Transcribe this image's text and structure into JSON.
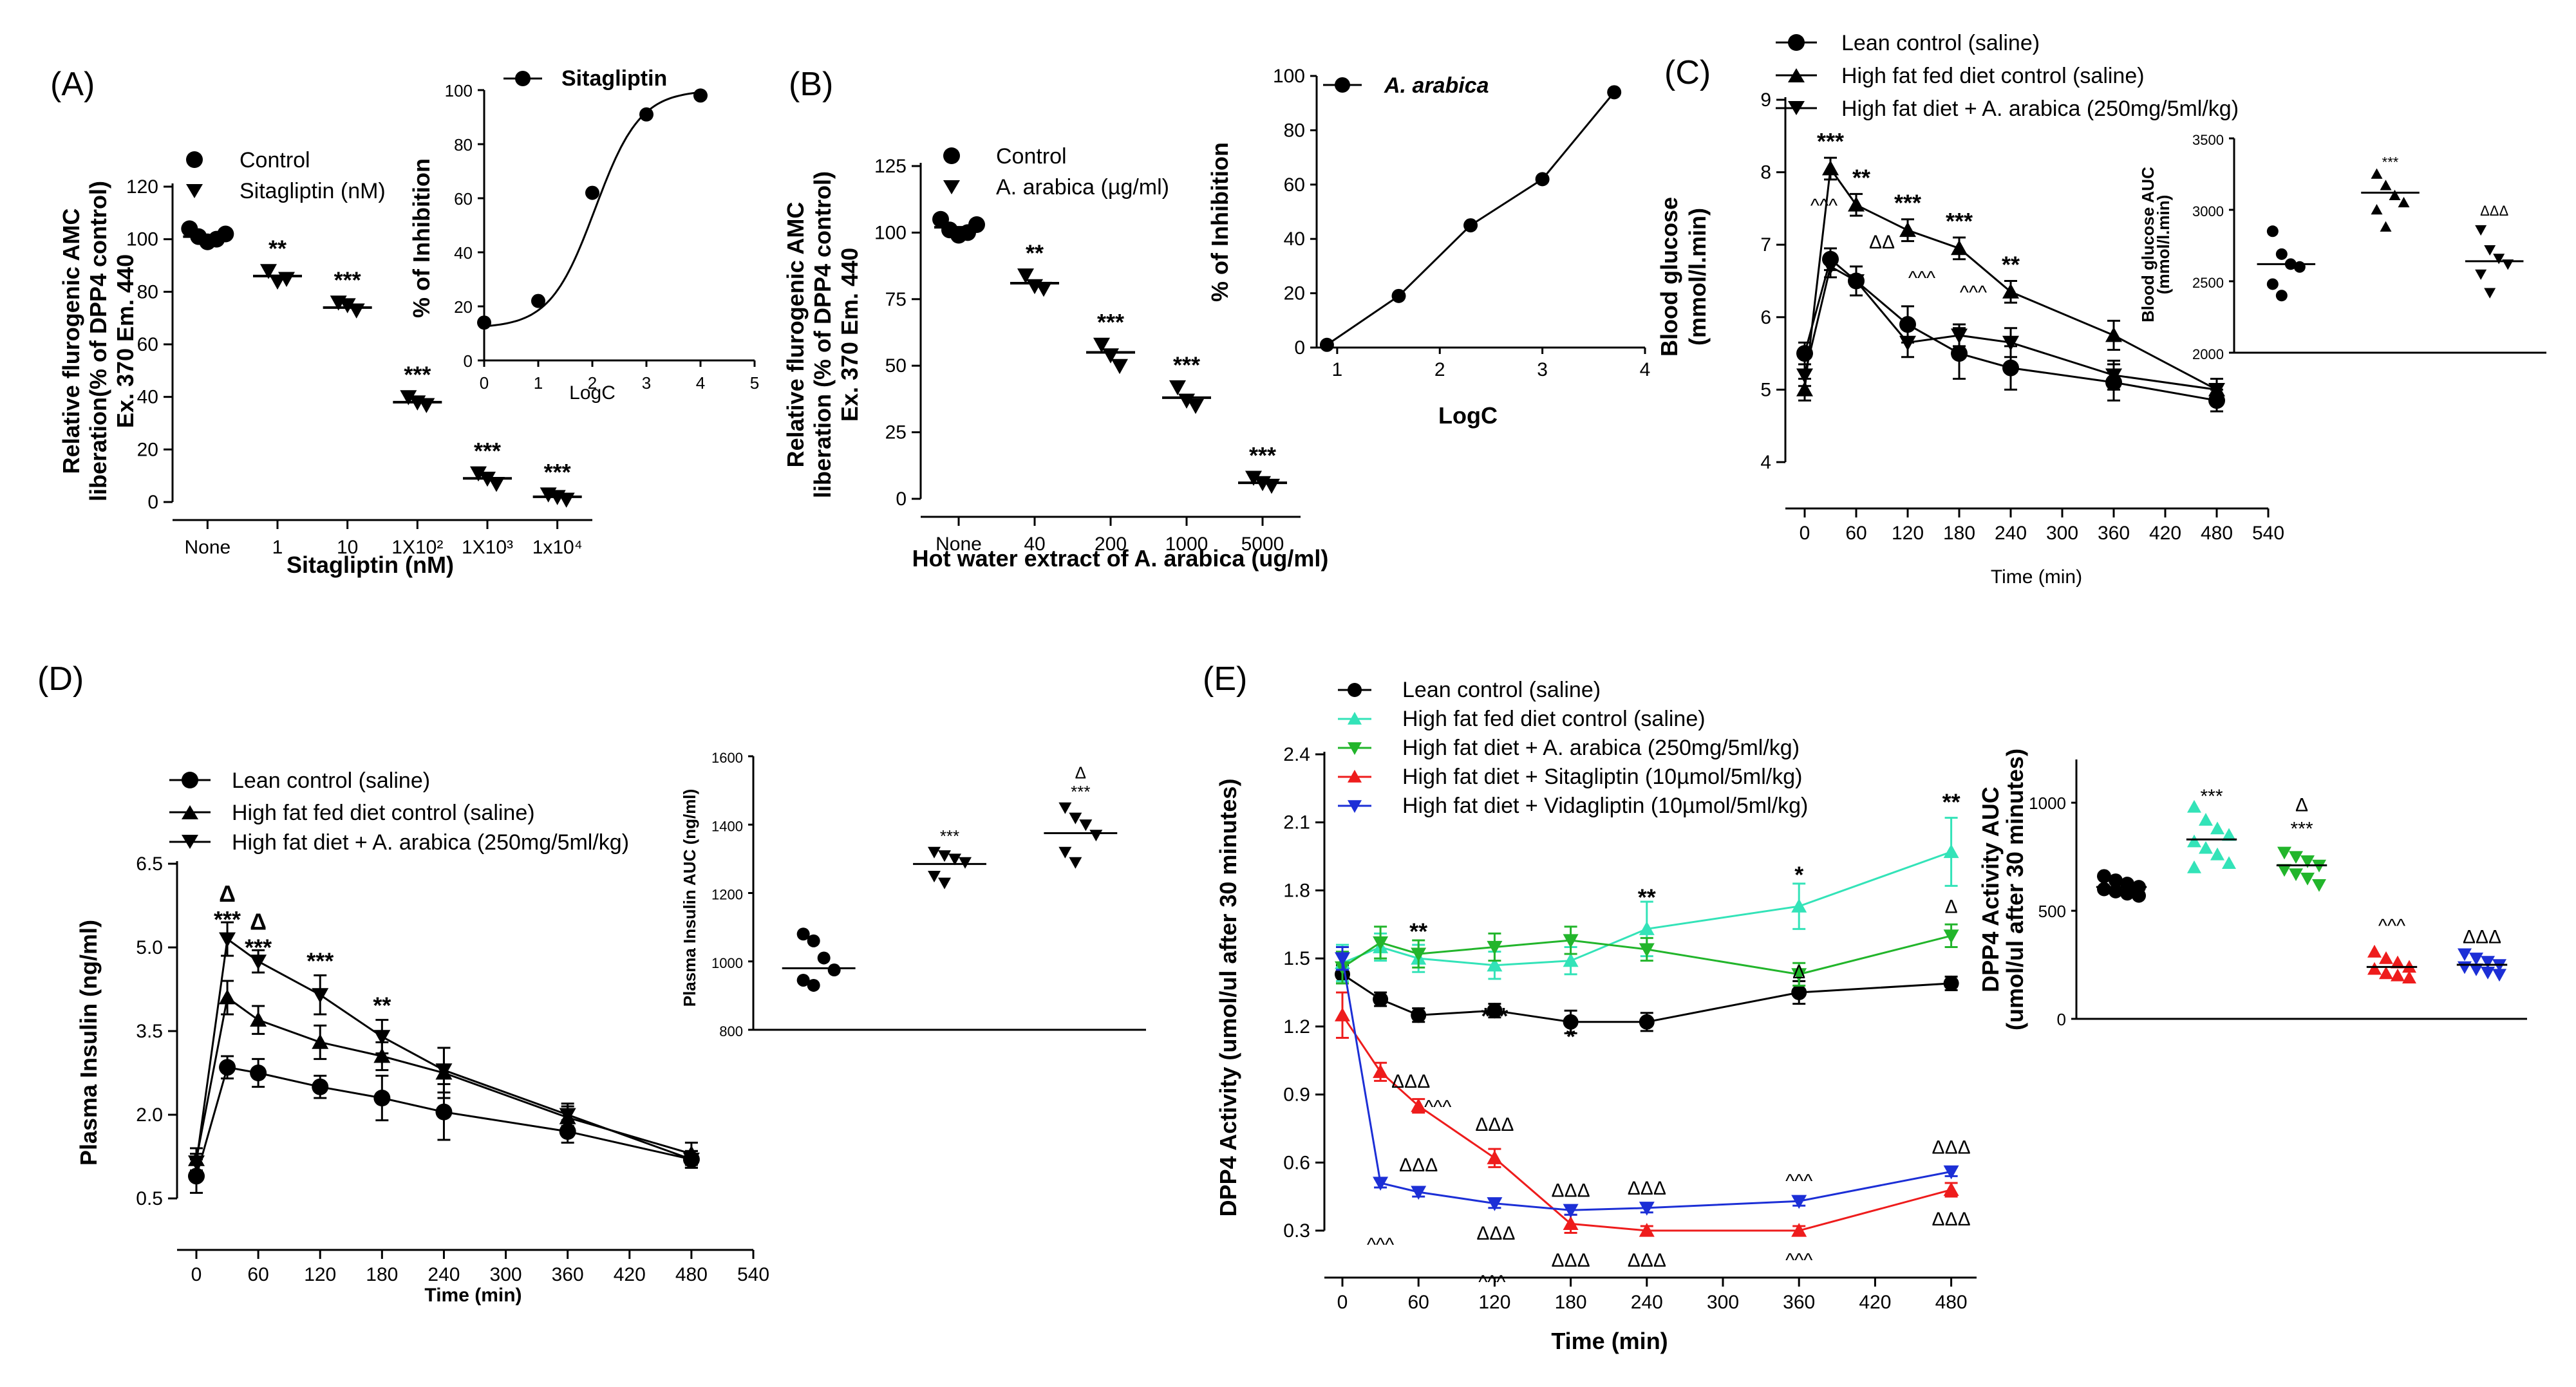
{
  "chart_data": [
    {
      "id": "A",
      "panel_label": "(A)",
      "type": "scatter",
      "ylabel_lines": [
        "Relative flurogenic AMC",
        "liberation(% of DPP4 control)",
        "Ex. 370 Em. 440"
      ],
      "xlabel": "Sitagliptin (nM)",
      "ylim": [
        0,
        120
      ],
      "yticks": [
        "0",
        "20",
        "40",
        "60",
        "80",
        "100",
        "120"
      ],
      "categories": [
        "None",
        "1",
        "10",
        "1X10²",
        "1X10³",
        "1x10⁴"
      ],
      "series": [
        {
          "name": "Control",
          "marker": "circle",
          "category_index": [
            0
          ],
          "means": [
            101
          ],
          "points": [
            [
              104,
              101,
              99,
              100,
              102
            ]
          ]
        },
        {
          "name": "Sitagliptin (nM)",
          "marker": "triangle-down",
          "category_index": [
            1,
            2,
            3,
            4,
            5
          ],
          "means": [
            86,
            74,
            38,
            9,
            2
          ],
          "points": [
            [
              88,
              84,
              85
            ],
            [
              76,
              75,
              73
            ],
            [
              40,
              38,
              37
            ],
            [
              11,
              9,
              7
            ],
            [
              3,
              2,
              1
            ]
          ]
        }
      ],
      "annotations": [
        "**",
        "***",
        "***",
        "***",
        "***"
      ],
      "inset": {
        "legend": "Sitagliptin",
        "xlabel": "LogC",
        "ylabel": "% of Inhibition",
        "xlim": [
          0,
          5
        ],
        "ylim": [
          0,
          100
        ],
        "xticks": [
          "0",
          "1",
          "2",
          "3",
          "4",
          "5"
        ],
        "yticks": [
          "0",
          "20",
          "40",
          "60",
          "80",
          "100"
        ],
        "x": [
          0,
          1,
          2,
          3,
          4
        ],
        "y": [
          14,
          22,
          62,
          91,
          98
        ]
      }
    },
    {
      "id": "B",
      "panel_label": "(B)",
      "type": "scatter",
      "ylabel_lines": [
        "Relative flurogenic AMC",
        "liberation (% of DPP4 control)",
        "Ex. 370 Em. 440"
      ],
      "xlabel": "Hot water extract of A. arabica (ug/ml)",
      "ylim": [
        0,
        125
      ],
      "yticks": [
        "0",
        "25",
        "50",
        "75",
        "100",
        "125"
      ],
      "categories": [
        "None",
        "40",
        "200",
        "1000",
        "5000"
      ],
      "series": [
        {
          "name": "Control",
          "marker": "circle",
          "category_index": [
            0
          ],
          "means": [
            102
          ],
          "points": [
            [
              105,
              101,
              99,
              100,
              103
            ]
          ]
        },
        {
          "name": "A. arabica (µg/ml)",
          "marker": "triangle-down",
          "category_index": [
            1,
            2,
            3,
            4
          ],
          "means": [
            81,
            55,
            38,
            6
          ],
          "points": [
            [
              84,
              80,
              79
            ],
            [
              58,
              54,
              50
            ],
            [
              42,
              37,
              35
            ],
            [
              8,
              6,
              5
            ]
          ]
        }
      ],
      "annotations": [
        "**",
        "***",
        "***",
        "***"
      ],
      "inset": {
        "legend": "A. arabica",
        "xlabel": "LogC",
        "ylabel": "% of Inhibition",
        "xlim": [
          0.8,
          4
        ],
        "ylim": [
          0,
          100
        ],
        "xticks": [
          "1",
          "2",
          "3",
          "4"
        ],
        "yticks": [
          "0",
          "20",
          "40",
          "60",
          "80",
          "100"
        ],
        "x": [
          0.9,
          1.6,
          2.3,
          3.0,
          3.7
        ],
        "y": [
          1,
          19,
          45,
          62,
          94
        ]
      }
    },
    {
      "id": "C",
      "panel_label": "(C)",
      "type": "line",
      "ylabel_lines": [
        "Blood glucose",
        "(mmol/l.min)"
      ],
      "xlabel": "Time (min)",
      "xlim": [
        0,
        540
      ],
      "ylim": [
        4,
        9
      ],
      "xticks": [
        "0",
        "60",
        "120",
        "180",
        "240",
        "300",
        "360",
        "420",
        "480",
        "540"
      ],
      "yticks": [
        "4",
        "5",
        "6",
        "7",
        "8",
        "9"
      ],
      "x": [
        0,
        30,
        60,
        120,
        180,
        240,
        360,
        480
      ],
      "series": [
        {
          "name": "Lean control (saline)",
          "marker": "circle",
          "values": [
            5.5,
            6.8,
            6.5,
            5.9,
            5.5,
            5.3,
            5.1,
            4.85
          ],
          "err": [
            0.15,
            0.15,
            0.2,
            0.25,
            0.35,
            0.3,
            0.25,
            0.15
          ]
        },
        {
          "name": "High fat fed diet control (saline)",
          "marker": "triangle-up",
          "values": [
            5.0,
            8.05,
            7.55,
            7.2,
            6.95,
            6.35,
            5.75,
            5.0
          ],
          "err": [
            0.15,
            0.15,
            0.15,
            0.15,
            0.15,
            0.15,
            0.2,
            0.15
          ]
        },
        {
          "name": "High fat diet + A. arabica (250mg/5ml/kg)",
          "marker": "triangle-down",
          "values": [
            5.2,
            6.7,
            6.5,
            5.65,
            5.75,
            5.65,
            5.2,
            5.0
          ],
          "err": [
            0.15,
            0.15,
            0.2,
            0.2,
            0.15,
            0.2,
            0.2,
            0.15
          ]
        }
      ],
      "annotations": [
        "***",
        "**",
        "***",
        "***",
        "**",
        "^^^",
        "ΔΔ",
        "^^^",
        "^^^"
      ],
      "inset": {
        "ylabel_lines": [
          "Blood glucose AUC",
          "(mmol/l.min)"
        ],
        "ylim": [
          2000,
          3500
        ],
        "yticks": [
          "2000",
          "2500",
          "3000",
          "3500"
        ],
        "groups": [
          {
            "mean": 2620,
            "points": [
              2850,
              2690,
              2620,
              2600,
              2480,
              2400
            ]
          },
          {
            "mean": 3120,
            "points": [
              3250,
              3170,
              3100,
              3050,
              3000,
              2880
            ]
          },
          {
            "mean": 2640,
            "points": [
              2860,
              2720,
              2660,
              2620,
              2550,
              2420
            ]
          }
        ],
        "annotations": [
          "***",
          "ΔΔΔ"
        ]
      }
    },
    {
      "id": "D",
      "panel_label": "(D)",
      "type": "line",
      "ylabel_lines": [
        "Plasma Insulin (ng/ml)"
      ],
      "xlabel": "Time (min)",
      "xlim": [
        0,
        540
      ],
      "ylim": [
        0.5,
        6.5
      ],
      "xticks": [
        "0",
        "60",
        "120",
        "180",
        "240",
        "300",
        "360",
        "420",
        "480",
        "540"
      ],
      "yticks": [
        "0.5",
        "2.0",
        "3.5",
        "5.0",
        "6.5"
      ],
      "x": [
        0,
        30,
        60,
        120,
        180,
        240,
        360,
        480
      ],
      "series": [
        {
          "name": "Lean control (saline)",
          "marker": "circle",
          "values": [
            0.9,
            2.85,
            2.75,
            2.5,
            2.3,
            2.05,
            1.7,
            1.2
          ],
          "err": [
            0.3,
            0.2,
            0.25,
            0.2,
            0.4,
            0.5,
            0.2,
            0.15
          ]
        },
        {
          "name": "High fat fed diet control (saline)",
          "marker": "triangle-up",
          "values": [
            1.2,
            4.1,
            3.7,
            3.3,
            3.05,
            2.75,
            1.95,
            1.3
          ],
          "err": [
            0.2,
            0.3,
            0.25,
            0.3,
            0.25,
            0.45,
            0.2,
            0.2
          ]
        },
        {
          "name": "High fat diet + A. arabica (250mg/5ml/kg)",
          "marker": "triangle-down",
          "values": [
            1.15,
            5.15,
            4.75,
            4.15,
            3.4,
            2.8,
            2.0,
            1.2
          ],
          "err": [
            0.15,
            0.3,
            0.2,
            0.35,
            0.3,
            0.4,
            0.2,
            0.15
          ]
        }
      ],
      "annotations": [
        "Δ",
        "***",
        "Δ",
        "***",
        "***",
        "**"
      ],
      "inset": {
        "ylabel_lines": [
          "Plasma Insulin AUC (ng/ml)"
        ],
        "ylim": [
          800,
          1600
        ],
        "yticks": [
          "800",
          "1000",
          "1200",
          "1400",
          "1600"
        ],
        "groups": [
          {
            "mean": 980,
            "points": [
              1080,
              1060,
              1010,
              975,
              945,
              930
            ]
          },
          {
            "mean": 1285,
            "points": [
              1320,
              1310,
              1300,
              1290,
              1250,
              1230
            ]
          },
          {
            "mean": 1375,
            "points": [
              1450,
              1420,
              1400,
              1370,
              1320,
              1290
            ]
          }
        ],
        "annotations": [
          "***",
          "Δ",
          "***"
        ]
      }
    },
    {
      "id": "E",
      "panel_label": "(E)",
      "type": "line",
      "ylabel_lines": [
        "DPP4 Activity (umol/ul after 30 minutes)"
      ],
      "xlabel": "Time (min)",
      "xlim": [
        0,
        500
      ],
      "ylim": [
        0.3,
        2.4
      ],
      "xticks": [
        "0",
        "60",
        "120",
        "180",
        "240",
        "300",
        "360",
        "420",
        "480"
      ],
      "yticks": [
        "0.3",
        "0.6",
        "0.9",
        "1.2",
        "1.5",
        "1.8",
        "2.1",
        "2.4"
      ],
      "x": [
        0,
        30,
        60,
        120,
        180,
        240,
        360,
        480
      ],
      "series": [
        {
          "name": "Lean control (saline)",
          "marker": "circle",
          "color": "#000000",
          "values": [
            1.43,
            1.32,
            1.25,
            1.27,
            1.22,
            1.22,
            1.35,
            1.39
          ],
          "err": [
            0.04,
            0.03,
            0.03,
            0.03,
            0.05,
            0.04,
            0.05,
            0.03
          ]
        },
        {
          "name": "High fat fed diet control (saline)",
          "marker": "triangle-up",
          "color": "#33e3b8",
          "values": [
            1.48,
            1.55,
            1.5,
            1.47,
            1.49,
            1.63,
            1.73,
            1.97
          ],
          "err": [
            0.08,
            0.06,
            0.06,
            0.06,
            0.06,
            0.12,
            0.1,
            0.15
          ]
        },
        {
          "name": "High fat diet + A. arabica (250mg/5ml/kg)",
          "marker": "triangle-down",
          "color": "#22b52b",
          "values": [
            1.46,
            1.57,
            1.52,
            1.55,
            1.58,
            1.54,
            1.43,
            1.6
          ],
          "err": [
            0.07,
            0.07,
            0.06,
            0.06,
            0.06,
            0.05,
            0.05,
            0.05
          ]
        },
        {
          "name": "High fat diet + Sitagliptin (10µmol/5ml/kg)",
          "marker": "triangle-up",
          "color": "#ee1c1c",
          "values": [
            1.25,
            1.0,
            0.85,
            0.62,
            0.33,
            0.3,
            0.3,
            0.48
          ],
          "err": [
            0.1,
            0.04,
            0.03,
            0.04,
            0.04,
            0.02,
            0.02,
            0.03
          ]
        },
        {
          "name": "High fat diet + Vidagliptin (10µmol/5ml/kg)",
          "marker": "triangle-down",
          "color": "#1c2fd6",
          "values": [
            1.5,
            0.51,
            0.47,
            0.42,
            0.39,
            0.4,
            0.43,
            0.56
          ],
          "err": [
            0.05,
            0.02,
            0.02,
            0.02,
            0.02,
            0.02,
            0.02,
            0.02
          ]
        }
      ],
      "annotations": [
        "**",
        "**",
        "*",
        "**",
        "***",
        "*",
        "Δ",
        "Δ",
        "ΔΔΔ",
        "^^^",
        "ΔΔΔ",
        "ΔΔΔ",
        "ΔΔΔ",
        "^^^",
        "^^^",
        "ΔΔΔ",
        "ΔΔΔ",
        "ΔΔΔ",
        "^^^",
        "ΔΔΔ",
        "ΔΔΔ",
        "^^^",
        "ΔΔΔ"
      ],
      "inset": {
        "ylabel_lines": [
          "DPP4 Activity AUC",
          "(umol/ul after 30 minutes)"
        ],
        "ylim": [
          0,
          1200
        ],
        "yticks": [
          "0",
          "500",
          "1000"
        ],
        "groups": [
          {
            "color": "#000000",
            "mean": 610,
            "points": [
              660,
              640,
              625,
              610,
              600,
              590,
              580,
              570
            ]
          },
          {
            "color": "#33e3b8",
            "mean": 830,
            "points": [
              980,
              920,
              880,
              850,
              820,
              790,
              760,
              720,
              700
            ]
          },
          {
            "color": "#22b52b",
            "mean": 710,
            "points": [
              770,
              750,
              730,
              710,
              690,
              670,
              650,
              620
            ]
          },
          {
            "color": "#ee1c1c",
            "mean": 240,
            "points": [
              310,
              280,
              260,
              240,
              230,
              210,
              200,
              190
            ]
          },
          {
            "color": "#1c2fd6",
            "mean": 250,
            "points": [
              300,
              280,
              265,
              250,
              240,
              230,
              215,
              205
            ]
          }
        ],
        "annotations": [
          "***",
          "Δ",
          "***",
          "^^^",
          "ΔΔΔ"
        ]
      }
    }
  ]
}
